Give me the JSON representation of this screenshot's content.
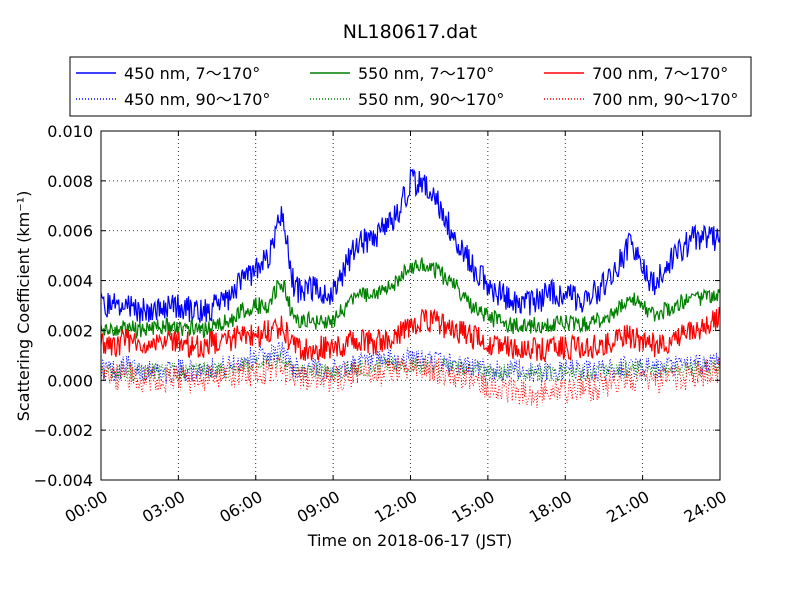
{
  "chart_data": {
    "type": "line",
    "title": "NL180617.dat",
    "xlabel": "Time on 2018-06-17 (JST)",
    "ylabel": "Scattering Coefficient (km⁻¹)",
    "xlim": [
      0,
      24
    ],
    "ylim": [
      -0.004,
      0.01
    ],
    "x_tick_labels": [
      "00:00",
      "03:00",
      "06:00",
      "09:00",
      "12:00",
      "15:00",
      "18:00",
      "21:00",
      "24:00"
    ],
    "x_ticks": [
      0,
      3,
      6,
      9,
      12,
      15,
      18,
      21,
      24
    ],
    "y_tick_labels": [
      "−0.004",
      "−0.002",
      "0.000",
      "0.002",
      "0.004",
      "0.006",
      "0.008",
      "0.010"
    ],
    "y_ticks": [
      -0.004,
      -0.002,
      0.0,
      0.002,
      0.004,
      0.006,
      0.008,
      0.01
    ],
    "grid": true,
    "legend_position": "top",
    "x": [
      0,
      0.5,
      1,
      1.5,
      2,
      2.5,
      3,
      3.5,
      4,
      4.5,
      5,
      5.5,
      6,
      6.5,
      7,
      7.5,
      8,
      8.5,
      9,
      9.5,
      10,
      10.5,
      11,
      11.5,
      12,
      12.5,
      13,
      13.5,
      14,
      14.5,
      15,
      15.5,
      16,
      16.5,
      17,
      17.5,
      18,
      18.5,
      19,
      19.5,
      20,
      20.5,
      21,
      21.5,
      22,
      22.5,
      23,
      23.5,
      24
    ],
    "series": [
      {
        "name": "450 nm, 7～170°",
        "color": "#0000ff",
        "style": "solid",
        "values": [
          0.003,
          0.003,
          0.0031,
          0.0028,
          0.0029,
          0.003,
          0.003,
          0.0028,
          0.0027,
          0.003,
          0.0034,
          0.004,
          0.0045,
          0.0048,
          0.0068,
          0.0036,
          0.0037,
          0.0036,
          0.0035,
          0.0046,
          0.0055,
          0.0056,
          0.0061,
          0.0066,
          0.008,
          0.0078,
          0.0073,
          0.0062,
          0.0053,
          0.0044,
          0.0039,
          0.0034,
          0.0031,
          0.0031,
          0.0032,
          0.0036,
          0.0034,
          0.0032,
          0.0034,
          0.0038,
          0.0045,
          0.0055,
          0.0044,
          0.0038,
          0.0048,
          0.0052,
          0.0058,
          0.0057,
          0.0057
        ]
      },
      {
        "name": "450 nm, 90～170°",
        "color": "#0000ff",
        "style": "dotted",
        "values": [
          0.0005,
          0.0004,
          0.0006,
          0.0004,
          0.0005,
          0.0003,
          0.0004,
          0.0004,
          0.0005,
          0.0005,
          0.0006,
          0.0008,
          0.001,
          0.001,
          0.0012,
          0.0005,
          0.0004,
          0.0005,
          0.0004,
          0.0005,
          0.0007,
          0.0007,
          0.0008,
          0.0008,
          0.0009,
          0.0008,
          0.0008,
          0.0007,
          0.0006,
          0.0005,
          0.0004,
          0.0004,
          0.0004,
          0.0004,
          0.0003,
          0.0004,
          0.0004,
          0.0004,
          0.0004,
          0.0004,
          0.0005,
          0.0006,
          0.0005,
          0.0004,
          0.0005,
          0.0006,
          0.0006,
          0.0007,
          0.0008
        ]
      },
      {
        "name": "550 nm, 7～170°",
        "color": "#008000",
        "style": "solid",
        "values": [
          0.0021,
          0.002,
          0.0021,
          0.002,
          0.0021,
          0.0022,
          0.0021,
          0.0021,
          0.002,
          0.0022,
          0.0024,
          0.0028,
          0.003,
          0.003,
          0.004,
          0.0024,
          0.0024,
          0.0023,
          0.0024,
          0.003,
          0.0034,
          0.0034,
          0.0036,
          0.004,
          0.0046,
          0.0046,
          0.0044,
          0.004,
          0.0035,
          0.0029,
          0.0026,
          0.0023,
          0.0022,
          0.0022,
          0.0022,
          0.0023,
          0.0023,
          0.0023,
          0.0023,
          0.0025,
          0.0029,
          0.0034,
          0.0029,
          0.0026,
          0.0029,
          0.0031,
          0.0033,
          0.0033,
          0.0035
        ]
      },
      {
        "name": "550 nm, 90～170°",
        "color": "#008000",
        "style": "dotted",
        "values": [
          0.0004,
          0.0003,
          0.0004,
          0.0003,
          0.0004,
          0.0003,
          0.0004,
          0.0003,
          0.0004,
          0.0004,
          0.0004,
          0.0006,
          0.0007,
          0.0007,
          0.0008,
          0.0004,
          0.0003,
          0.0004,
          0.0003,
          0.0004,
          0.0005,
          0.0005,
          0.0006,
          0.0006,
          0.0006,
          0.0006,
          0.0006,
          0.0005,
          0.0005,
          0.0004,
          0.0003,
          0.0003,
          0.0003,
          0.0003,
          0.0003,
          0.0003,
          0.0003,
          0.0003,
          0.0003,
          0.0003,
          0.0004,
          0.0005,
          0.0004,
          0.0003,
          0.0004,
          0.0004,
          0.0005,
          0.0005,
          0.0006
        ]
      },
      {
        "name": "700 nm, 7～170°",
        "color": "#ff0000",
        "style": "solid",
        "values": [
          0.0015,
          0.0014,
          0.0016,
          0.0014,
          0.0014,
          0.0015,
          0.0016,
          0.0014,
          0.0014,
          0.0015,
          0.0016,
          0.0018,
          0.0018,
          0.002,
          0.0022,
          0.0013,
          0.0012,
          0.0013,
          0.0012,
          0.0015,
          0.0016,
          0.0015,
          0.0016,
          0.0018,
          0.0022,
          0.0024,
          0.0023,
          0.0021,
          0.0019,
          0.0017,
          0.0015,
          0.0014,
          0.0013,
          0.0013,
          0.0012,
          0.0013,
          0.0013,
          0.0013,
          0.0013,
          0.0014,
          0.0016,
          0.0018,
          0.0015,
          0.0014,
          0.0016,
          0.0018,
          0.002,
          0.0022,
          0.0025
        ]
      },
      {
        "name": "700 nm, 90～170°",
        "color": "#ff0000",
        "style": "dotted",
        "values": [
          0.0002,
          0.0001,
          0.0002,
          0.0,
          0.0001,
          0.0,
          0.0001,
          0.0,
          0.0001,
          0.0001,
          0.0002,
          0.0003,
          0.0003,
          0.0004,
          0.0005,
          0.0001,
          0.0,
          0.0001,
          0.0,
          0.0002,
          0.0003,
          0.0003,
          0.0003,
          0.0004,
          0.0005,
          0.0005,
          0.0004,
          0.0003,
          0.0002,
          0.0001,
          -0.0002,
          -0.0003,
          -0.0004,
          -0.0005,
          -0.0006,
          -0.0004,
          -0.0004,
          -0.0003,
          -0.0003,
          -0.0002,
          0.0,
          0.0001,
          0.0,
          -0.0001,
          0.0,
          0.0001,
          0.0002,
          0.0003,
          0.0004
        ]
      }
    ]
  }
}
